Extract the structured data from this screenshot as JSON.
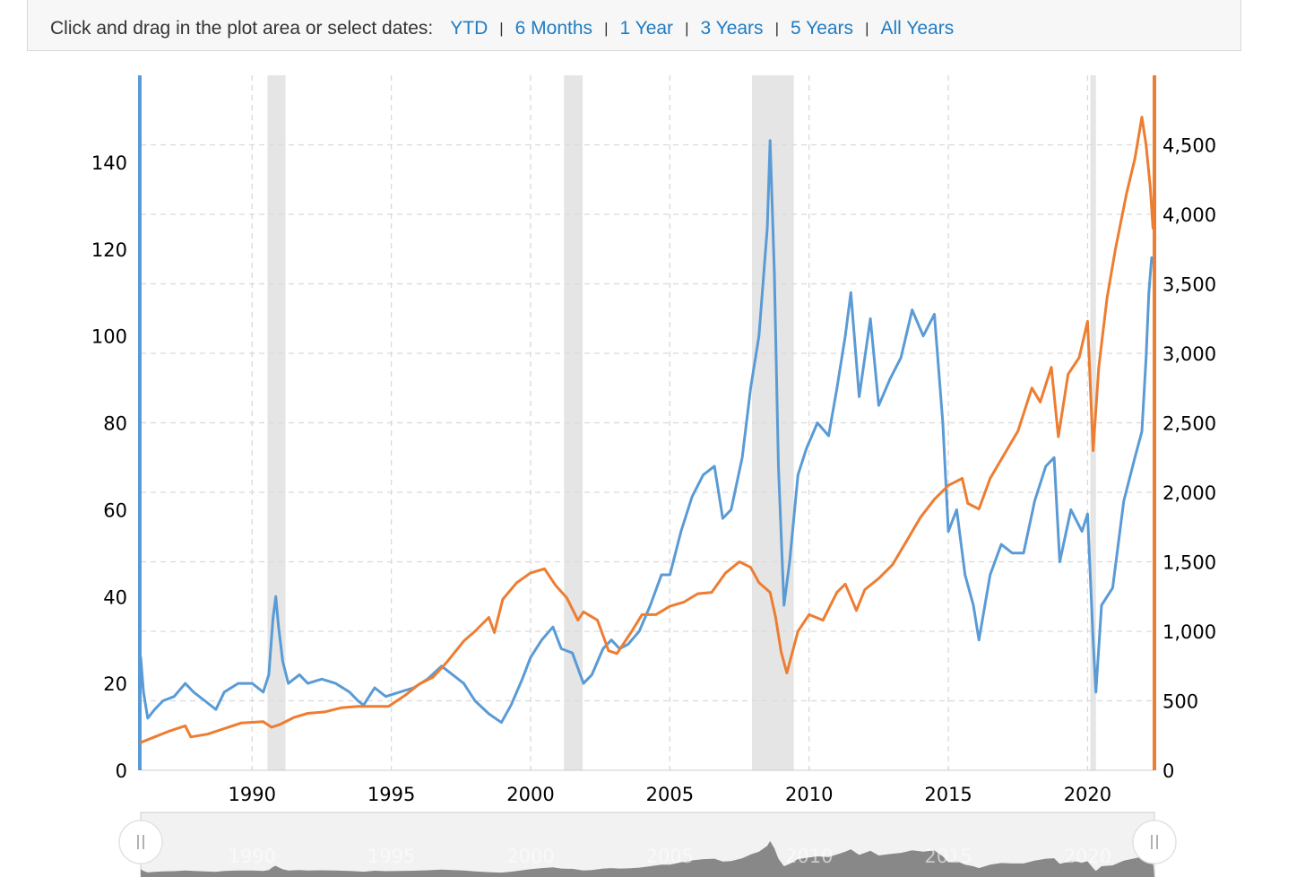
{
  "toolbar": {
    "prompt": "Click and drag in the plot area or select dates:",
    "ranges": [
      "YTD",
      "6 Months",
      "1 Year",
      "3 Years",
      "5 Years",
      "All Years"
    ]
  },
  "colors": {
    "left_series": "#5a9bd5",
    "right_series": "#ed7d31",
    "recession": "#e5e5e5",
    "navigator": "#888888",
    "link": "#1f7cc1"
  },
  "chart_data": {
    "type": "line",
    "title": "",
    "xlabel": "",
    "xlim": [
      1986.0,
      2022.4
    ],
    "x_ticks": [
      "1990",
      "1995",
      "2000",
      "2005",
      "2010",
      "2015",
      "2020"
    ],
    "y_left": {
      "ylim": [
        0,
        160
      ],
      "ticks": [
        "0",
        "20",
        "40",
        "60",
        "80",
        "100",
        "120",
        "140"
      ]
    },
    "y_right": {
      "ylim": [
        0,
        5000
      ],
      "ticks": [
        "0",
        "500",
        "1,000",
        "1,500",
        "2,000",
        "2,500",
        "3,000",
        "3,500",
        "4,000",
        "4,500"
      ]
    },
    "recessions": [
      [
        1990.55,
        1991.2
      ],
      [
        2001.2,
        2001.87
      ],
      [
        2007.95,
        2009.45
      ],
      [
        2020.1,
        2020.3
      ]
    ],
    "grid": true,
    "series": [
      {
        "axis": "left",
        "points": [
          [
            1986.0,
            26
          ],
          [
            1986.1,
            18
          ],
          [
            1986.25,
            12
          ],
          [
            1986.5,
            14
          ],
          [
            1986.8,
            16
          ],
          [
            1987.2,
            17
          ],
          [
            1987.6,
            20
          ],
          [
            1987.9,
            18
          ],
          [
            1988.3,
            16
          ],
          [
            1988.7,
            14
          ],
          [
            1989.0,
            18
          ],
          [
            1989.5,
            20
          ],
          [
            1990.0,
            20
          ],
          [
            1990.4,
            18
          ],
          [
            1990.6,
            22
          ],
          [
            1990.75,
            35
          ],
          [
            1990.85,
            40
          ],
          [
            1990.95,
            33
          ],
          [
            1991.1,
            25
          ],
          [
            1991.3,
            20
          ],
          [
            1991.7,
            22
          ],
          [
            1992.0,
            20
          ],
          [
            1992.5,
            21
          ],
          [
            1993.0,
            20
          ],
          [
            1993.5,
            18
          ],
          [
            1993.8,
            16
          ],
          [
            1994.0,
            15
          ],
          [
            1994.4,
            19
          ],
          [
            1994.8,
            17
          ],
          [
            1995.3,
            18
          ],
          [
            1995.8,
            19
          ],
          [
            1996.3,
            21
          ],
          [
            1996.8,
            24
          ],
          [
            1997.2,
            22
          ],
          [
            1997.6,
            20
          ],
          [
            1998.0,
            16
          ],
          [
            1998.5,
            13
          ],
          [
            1998.95,
            11
          ],
          [
            1999.3,
            15
          ],
          [
            1999.7,
            21
          ],
          [
            2000.0,
            26
          ],
          [
            2000.4,
            30
          ],
          [
            2000.8,
            33
          ],
          [
            2001.1,
            28
          ],
          [
            2001.5,
            27
          ],
          [
            2001.9,
            20
          ],
          [
            2002.2,
            22
          ],
          [
            2002.6,
            28
          ],
          [
            2002.9,
            30
          ],
          [
            2003.2,
            28
          ],
          [
            2003.5,
            29
          ],
          [
            2003.9,
            32
          ],
          [
            2004.3,
            38
          ],
          [
            2004.7,
            45
          ],
          [
            2005.0,
            45
          ],
          [
            2005.4,
            55
          ],
          [
            2005.8,
            63
          ],
          [
            2006.2,
            68
          ],
          [
            2006.6,
            70
          ],
          [
            2006.9,
            58
          ],
          [
            2007.2,
            60
          ],
          [
            2007.6,
            72
          ],
          [
            2007.9,
            88
          ],
          [
            2008.2,
            100
          ],
          [
            2008.5,
            125
          ],
          [
            2008.6,
            145
          ],
          [
            2008.75,
            115
          ],
          [
            2008.9,
            70
          ],
          [
            2009.1,
            38
          ],
          [
            2009.3,
            48
          ],
          [
            2009.6,
            68
          ],
          [
            2009.9,
            74
          ],
          [
            2010.3,
            80
          ],
          [
            2010.7,
            77
          ],
          [
            2011.0,
            88
          ],
          [
            2011.3,
            100
          ],
          [
            2011.5,
            110
          ],
          [
            2011.8,
            86
          ],
          [
            2012.2,
            104
          ],
          [
            2012.5,
            84
          ],
          [
            2012.9,
            90
          ],
          [
            2013.3,
            95
          ],
          [
            2013.7,
            106
          ],
          [
            2014.1,
            100
          ],
          [
            2014.5,
            105
          ],
          [
            2014.8,
            80
          ],
          [
            2015.0,
            55
          ],
          [
            2015.3,
            60
          ],
          [
            2015.6,
            45
          ],
          [
            2015.9,
            38
          ],
          [
            2016.1,
            30
          ],
          [
            2016.5,
            45
          ],
          [
            2016.9,
            52
          ],
          [
            2017.3,
            50
          ],
          [
            2017.7,
            50
          ],
          [
            2018.1,
            62
          ],
          [
            2018.5,
            70
          ],
          [
            2018.8,
            72
          ],
          [
            2019.0,
            48
          ],
          [
            2019.4,
            60
          ],
          [
            2019.8,
            55
          ],
          [
            2020.0,
            59
          ],
          [
            2020.2,
            30
          ],
          [
            2020.3,
            18
          ],
          [
            2020.5,
            38
          ],
          [
            2020.9,
            42
          ],
          [
            2021.3,
            62
          ],
          [
            2021.7,
            72
          ],
          [
            2021.95,
            78
          ],
          [
            2022.1,
            95
          ],
          [
            2022.2,
            110
          ],
          [
            2022.3,
            118
          ]
        ]
      },
      {
        "axis": "right",
        "points": [
          [
            1986.0,
            200
          ],
          [
            1986.5,
            240
          ],
          [
            1987.0,
            280
          ],
          [
            1987.6,
            320
          ],
          [
            1987.8,
            240
          ],
          [
            1988.4,
            260
          ],
          [
            1989.0,
            300
          ],
          [
            1989.6,
            340
          ],
          [
            1990.4,
            350
          ],
          [
            1990.7,
            310
          ],
          [
            1991.0,
            330
          ],
          [
            1991.5,
            380
          ],
          [
            1992.0,
            410
          ],
          [
            1992.6,
            420
          ],
          [
            1993.2,
            450
          ],
          [
            1993.8,
            460
          ],
          [
            1994.4,
            460
          ],
          [
            1994.9,
            460
          ],
          [
            1995.5,
            540
          ],
          [
            1996.0,
            620
          ],
          [
            1996.5,
            670
          ],
          [
            1997.0,
            780
          ],
          [
            1997.6,
            930
          ],
          [
            1998.0,
            1000
          ],
          [
            1998.5,
            1100
          ],
          [
            1998.7,
            990
          ],
          [
            1999.0,
            1230
          ],
          [
            1999.5,
            1350
          ],
          [
            2000.0,
            1420
          ],
          [
            2000.5,
            1450
          ],
          [
            2000.9,
            1330
          ],
          [
            2001.3,
            1240
          ],
          [
            2001.7,
            1080
          ],
          [
            2001.9,
            1140
          ],
          [
            2002.4,
            1080
          ],
          [
            2002.8,
            860
          ],
          [
            2003.1,
            840
          ],
          [
            2003.6,
            990
          ],
          [
            2004.0,
            1120
          ],
          [
            2004.5,
            1120
          ],
          [
            2005.0,
            1180
          ],
          [
            2005.5,
            1210
          ],
          [
            2006.0,
            1270
          ],
          [
            2006.5,
            1280
          ],
          [
            2007.0,
            1420
          ],
          [
            2007.5,
            1500
          ],
          [
            2007.9,
            1460
          ],
          [
            2008.2,
            1350
          ],
          [
            2008.6,
            1280
          ],
          [
            2008.8,
            1100
          ],
          [
            2009.0,
            850
          ],
          [
            2009.2,
            700
          ],
          [
            2009.6,
            1000
          ],
          [
            2010.0,
            1120
          ],
          [
            2010.5,
            1080
          ],
          [
            2011.0,
            1280
          ],
          [
            2011.3,
            1340
          ],
          [
            2011.7,
            1150
          ],
          [
            2012.0,
            1300
          ],
          [
            2012.5,
            1380
          ],
          [
            2013.0,
            1480
          ],
          [
            2013.5,
            1650
          ],
          [
            2014.0,
            1820
          ],
          [
            2014.5,
            1950
          ],
          [
            2015.0,
            2050
          ],
          [
            2015.5,
            2100
          ],
          [
            2015.7,
            1920
          ],
          [
            2016.1,
            1880
          ],
          [
            2016.5,
            2100
          ],
          [
            2017.0,
            2270
          ],
          [
            2017.5,
            2440
          ],
          [
            2018.0,
            2750
          ],
          [
            2018.3,
            2650
          ],
          [
            2018.7,
            2900
          ],
          [
            2018.95,
            2400
          ],
          [
            2019.3,
            2850
          ],
          [
            2019.7,
            2970
          ],
          [
            2020.0,
            3230
          ],
          [
            2020.2,
            2300
          ],
          [
            2020.4,
            2900
          ],
          [
            2020.7,
            3400
          ],
          [
            2021.0,
            3750
          ],
          [
            2021.4,
            4150
          ],
          [
            2021.7,
            4400
          ],
          [
            2021.95,
            4700
          ],
          [
            2022.1,
            4500
          ],
          [
            2022.25,
            4200
          ],
          [
            2022.35,
            3900
          ]
        ]
      }
    ]
  }
}
